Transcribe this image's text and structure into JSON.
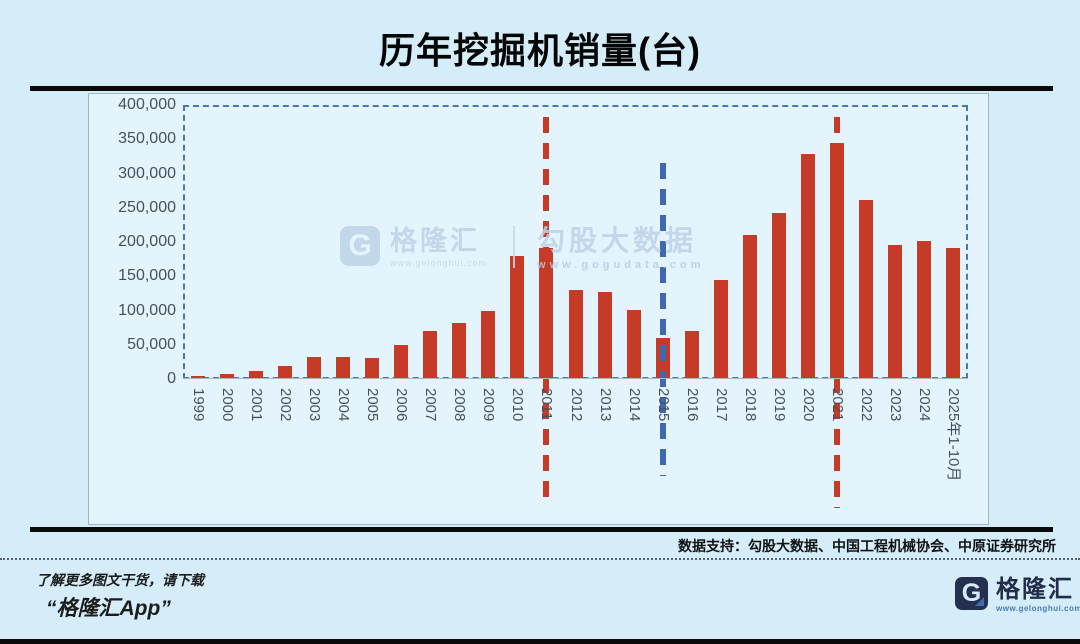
{
  "title": "历年挖掘机销量(台)",
  "watermark": {
    "brand": "格隆汇",
    "brand_url": "www.gelonghui.com",
    "logo_letter": "G",
    "product": "勾股大数据",
    "product_url": "www.gogudata.com"
  },
  "footer": {
    "data_support": "数据支持：勾股大数据、中国工程机械协会、中原证券研究所",
    "promo_line1": "了解更多图文干货，请下载",
    "promo_line2": "“格隆汇App”",
    "logo_letter": "G",
    "logo_text": "格隆汇",
    "logo_url": "www.gelonghui.com"
  },
  "colors": {
    "background": "#d4edf9",
    "panel": "#e4f4fc",
    "bar": "#c63a28",
    "red_marker": "#c63a28",
    "blue_marker": "#3f68ae",
    "plot_border": "#4a78ad",
    "axis_text": "#44505e"
  },
  "chart_data": {
    "type": "bar",
    "title": "历年挖掘机销量(台)",
    "categories": [
      "1999",
      "2000",
      "2001",
      "2002",
      "2003",
      "2004",
      "2005",
      "2006",
      "2007",
      "2008",
      "2009",
      "2010",
      "2011",
      "2012",
      "2013",
      "2014",
      "2015",
      "2016",
      "2017",
      "2018",
      "2019",
      "2020",
      "2021",
      "2022",
      "2023",
      "2024",
      "2025年1-10月"
    ],
    "values": [
      5000,
      7500,
      11000,
      18500,
      31500,
      32000,
      31000,
      49000,
      70000,
      82000,
      100000,
      179000,
      191000,
      130000,
      127000,
      101000,
      60000,
      70000,
      144000,
      210000,
      243000,
      328000,
      344000,
      261000,
      195000,
      201000,
      191000
    ],
    "xlabel": "",
    "ylabel": "",
    "ylim": [
      0,
      400000
    ],
    "ytick_step": 50000,
    "ytick_labels": [
      "400,000",
      "350,000",
      "300,000",
      "250,000",
      "200,000",
      "150,000",
      "100,000",
      "50,000",
      "0"
    ],
    "grid": false,
    "legend_position": "none",
    "bar_color": "#c63a28",
    "vlines": [
      {
        "category": "2011",
        "color": "#c63a28",
        "style": "dashed"
      },
      {
        "category": "2015",
        "color": "#3f68ae",
        "style": "dashed"
      },
      {
        "category": "2021",
        "color": "#c63a28",
        "style": "dashed"
      }
    ]
  }
}
